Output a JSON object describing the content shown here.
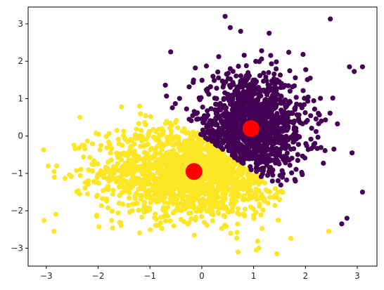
{
  "chart_data": {
    "type": "scatter",
    "title": "",
    "xlabel": "",
    "ylabel": "",
    "xlim": [
      -3.35,
      3.38
    ],
    "ylim": [
      -3.48,
      3.45
    ],
    "grid": false,
    "legend": "none",
    "x_ticks": [
      -3,
      -2,
      -1,
      0,
      1,
      2,
      3
    ],
    "y_ticks": [
      -3,
      -2,
      -1,
      0,
      1,
      2,
      3
    ],
    "x_tick_labels": [
      "−3",
      "−2",
      "−1",
      "0",
      "1",
      "2",
      "3"
    ],
    "y_tick_labels": [
      "−3",
      "−2",
      "−1",
      "0",
      "1",
      "2",
      "3"
    ],
    "clusters": [
      {
        "color": "#440154",
        "center": [
          0.95,
          0.2
        ],
        "spread": [
          0.55,
          0.7
        ],
        "point_count": 1400,
        "outliers": [
          [
            0.45,
            3.2
          ],
          [
            0.55,
            2.9
          ],
          [
            2.48,
            3.13
          ],
          [
            0.75,
            2.8
          ],
          [
            1.3,
            2.75
          ],
          [
            -0.6,
            2.25
          ],
          [
            3.1,
            1.85
          ],
          [
            2.85,
            1.85
          ],
          [
            2.9,
            -0.45
          ],
          [
            3.1,
            -1.5
          ],
          [
            2.8,
            -2.2
          ],
          [
            2.7,
            -2.35
          ],
          [
            2.55,
            -0.35
          ],
          [
            0.55,
            1.8
          ]
        ]
      },
      {
        "color": "#fde725",
        "center": [
          -0.15,
          -0.95
        ],
        "spread": [
          0.9,
          0.62
        ],
        "point_count": 1800,
        "outliers": [
          [
            -3.05,
            -0.37
          ],
          [
            -2.85,
            -2.55
          ],
          [
            -2.8,
            -0.8
          ],
          [
            -2.85,
            -0.95
          ],
          [
            1.05,
            -3.05
          ],
          [
            1.1,
            -3.0
          ],
          [
            1.45,
            -3.15
          ],
          [
            0.7,
            -3.1
          ],
          [
            2.45,
            -2.55
          ],
          [
            -2.35,
            0.5
          ],
          [
            -1.55,
            0.78
          ],
          [
            -1.2,
            0.8
          ]
        ]
      }
    ],
    "centroids": {
      "color": "#ff0000",
      "points": [
        [
          0.95,
          0.2
        ],
        [
          -0.15,
          -0.95
        ]
      ]
    }
  }
}
